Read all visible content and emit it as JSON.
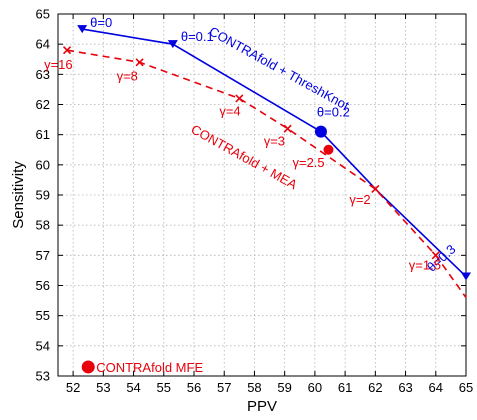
{
  "chart_data": {
    "type": "line",
    "xlabel": "PPV",
    "ylabel": "Sensitivity",
    "xlim": [
      51.5,
      65
    ],
    "ylim": [
      53,
      65
    ],
    "xticks": [
      52,
      53,
      54,
      55,
      56,
      57,
      58,
      59,
      60,
      61,
      62,
      63,
      64,
      65
    ],
    "yticks": [
      53,
      54,
      55,
      56,
      57,
      58,
      59,
      60,
      61,
      62,
      63,
      64,
      65
    ],
    "grid": true,
    "colors": {
      "blue": "#0000e0",
      "red": "#e8000b"
    },
    "series": [
      {
        "name": "CONTRAfold + ThreshKnot",
        "style": "solid",
        "color": "#0000e0",
        "x": [
          52.3,
          55.3,
          60.2,
          62.1,
          65.0
        ],
        "y": [
          64.5,
          64.0,
          61.1,
          59.1,
          56.3
        ],
        "markers": [
          {
            "x": 52.3,
            "y": 64.5,
            "shape": "triangle-down",
            "label": "θ=0"
          },
          {
            "x": 55.3,
            "y": 64.0,
            "shape": "triangle-down",
            "label": "θ=0.1"
          },
          {
            "x": 60.2,
            "y": 61.1,
            "shape": "circle",
            "label": "θ=0.2"
          },
          {
            "x": 65.0,
            "y": 56.3,
            "shape": "triangle-down",
            "label": "θ=0.3"
          }
        ]
      },
      {
        "name": "CONTRAfold + MEA",
        "style": "dashed",
        "color": "#e8000b",
        "x": [
          51.8,
          54.2,
          57.5,
          59.1,
          62.0,
          64.0,
          65.0
        ],
        "y": [
          63.8,
          63.4,
          62.2,
          61.2,
          59.2,
          57.0,
          55.6
        ],
        "markers": [
          {
            "x": 51.8,
            "y": 63.8,
            "shape": "x",
            "label": "γ=16"
          },
          {
            "x": 54.2,
            "y": 63.4,
            "shape": "x",
            "label": "γ=8"
          },
          {
            "x": 57.5,
            "y": 62.2,
            "shape": "x",
            "label": "γ=4"
          },
          {
            "x": 59.1,
            "y": 61.2,
            "shape": "x",
            "label": "γ=3"
          },
          {
            "x": 62.0,
            "y": 59.2,
            "shape": "x",
            "label": "γ=2"
          },
          {
            "x": 64.0,
            "y": 57.0,
            "shape": "x",
            "label": "γ=1.5"
          }
        ]
      }
    ],
    "points": [
      {
        "x": 60.45,
        "y": 60.5,
        "color": "#e8000b",
        "label": "γ=2.5"
      },
      {
        "x": 52.5,
        "y": 53.3,
        "color": "#e8000b",
        "label": "CONTRAfold MFE"
      }
    ]
  }
}
